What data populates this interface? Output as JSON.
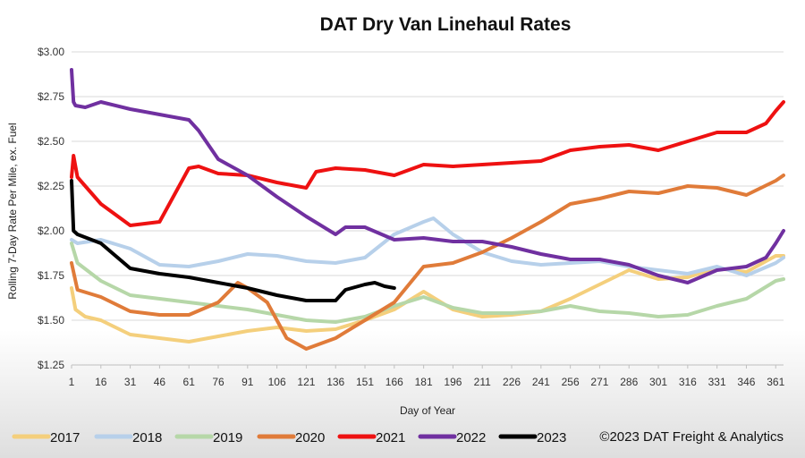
{
  "chart_data": {
    "type": "line",
    "title": "DAT Dry Van Linehaul Rates",
    "xlabel": "Day of Year",
    "ylabel": "Rolling 7-Day Rate Per Mile, ex. Fuel",
    "xlim": [
      1,
      365
    ],
    "ylim": [
      1.25,
      3.0
    ],
    "x_ticks": [
      1,
      16,
      31,
      46,
      61,
      76,
      91,
      106,
      121,
      136,
      151,
      166,
      181,
      196,
      211,
      226,
      241,
      256,
      271,
      286,
      301,
      316,
      331,
      346,
      361
    ],
    "y_ticks": [
      1.25,
      1.5,
      1.75,
      2.0,
      2.25,
      2.5,
      2.75,
      3.0
    ],
    "y_tick_labels": [
      "$1.25",
      "$1.50",
      "$1.75",
      "$2.00",
      "$2.25",
      "$2.50",
      "$2.75",
      "$3.00"
    ],
    "grid": true,
    "copyright": "©2023 DAT Freight & Analytics",
    "series": [
      {
        "name": "2017",
        "color": "#f4cf7c",
        "x": [
          1,
          3,
          8,
          16,
          31,
          46,
          61,
          76,
          91,
          106,
          121,
          136,
          151,
          166,
          181,
          196,
          211,
          226,
          241,
          256,
          271,
          286,
          301,
          316,
          331,
          346,
          361,
          365
        ],
        "y": [
          1.68,
          1.56,
          1.52,
          1.5,
          1.42,
          1.4,
          1.38,
          1.41,
          1.44,
          1.46,
          1.44,
          1.45,
          1.5,
          1.56,
          1.66,
          1.56,
          1.52,
          1.53,
          1.55,
          1.62,
          1.7,
          1.78,
          1.73,
          1.74,
          1.79,
          1.77,
          1.86,
          1.86
        ]
      },
      {
        "name": "2018",
        "color": "#b7d0ea",
        "x": [
          1,
          4,
          16,
          31,
          46,
          61,
          76,
          91,
          106,
          121,
          136,
          151,
          166,
          181,
          186,
          196,
          211,
          226,
          241,
          256,
          271,
          286,
          301,
          316,
          331,
          346,
          361,
          365
        ],
        "y": [
          1.95,
          1.93,
          1.95,
          1.9,
          1.81,
          1.8,
          1.83,
          1.87,
          1.86,
          1.83,
          1.82,
          1.85,
          1.98,
          2.05,
          2.07,
          1.98,
          1.88,
          1.83,
          1.81,
          1.82,
          1.83,
          1.8,
          1.78,
          1.76,
          1.8,
          1.75,
          1.82,
          1.85
        ]
      },
      {
        "name": "2019",
        "color": "#b6d7a8",
        "x": [
          1,
          4,
          16,
          31,
          46,
          61,
          76,
          91,
          106,
          121,
          136,
          151,
          166,
          181,
          196,
          211,
          226,
          241,
          256,
          271,
          286,
          301,
          316,
          331,
          346,
          361,
          365
        ],
        "y": [
          1.93,
          1.82,
          1.72,
          1.64,
          1.62,
          1.6,
          1.58,
          1.56,
          1.53,
          1.5,
          1.49,
          1.52,
          1.58,
          1.63,
          1.57,
          1.54,
          1.54,
          1.55,
          1.58,
          1.55,
          1.54,
          1.52,
          1.53,
          1.58,
          1.62,
          1.72,
          1.73
        ]
      },
      {
        "name": "2020",
        "color": "#e07b39",
        "x": [
          1,
          4,
          16,
          31,
          46,
          61,
          76,
          86,
          91,
          101,
          111,
          121,
          136,
          151,
          166,
          181,
          196,
          211,
          226,
          241,
          256,
          271,
          286,
          301,
          316,
          331,
          346,
          361,
          365
        ],
        "y": [
          1.82,
          1.67,
          1.63,
          1.55,
          1.53,
          1.53,
          1.6,
          1.71,
          1.68,
          1.6,
          1.4,
          1.34,
          1.4,
          1.5,
          1.6,
          1.8,
          1.82,
          1.88,
          1.96,
          2.05,
          2.15,
          2.18,
          2.22,
          2.21,
          2.25,
          2.24,
          2.2,
          2.28,
          2.31
        ]
      },
      {
        "name": "2021",
        "color": "#ee1111",
        "x": [
          1,
          2,
          4,
          8,
          16,
          31,
          46,
          61,
          66,
          76,
          91,
          106,
          121,
          126,
          136,
          151,
          166,
          181,
          196,
          211,
          226,
          241,
          256,
          271,
          286,
          301,
          316,
          331,
          346,
          356,
          361,
          365
        ],
        "y": [
          2.3,
          2.42,
          2.3,
          2.25,
          2.15,
          2.03,
          2.05,
          2.35,
          2.36,
          2.32,
          2.31,
          2.27,
          2.24,
          2.33,
          2.35,
          2.34,
          2.31,
          2.37,
          2.36,
          2.37,
          2.38,
          2.39,
          2.45,
          2.47,
          2.48,
          2.45,
          2.5,
          2.55,
          2.55,
          2.6,
          2.67,
          2.72
        ]
      },
      {
        "name": "2022",
        "color": "#7030a0",
        "x": [
          1,
          2,
          3,
          8,
          16,
          31,
          46,
          61,
          66,
          76,
          91,
          106,
          121,
          136,
          141,
          151,
          166,
          181,
          196,
          211,
          226,
          241,
          256,
          271,
          286,
          301,
          316,
          331,
          346,
          356,
          361,
          365
        ],
        "y": [
          2.9,
          2.72,
          2.7,
          2.69,
          2.72,
          2.68,
          2.65,
          2.62,
          2.56,
          2.4,
          2.31,
          2.19,
          2.08,
          1.98,
          2.02,
          2.02,
          1.95,
          1.96,
          1.94,
          1.94,
          1.91,
          1.87,
          1.84,
          1.84,
          1.81,
          1.75,
          1.71,
          1.78,
          1.8,
          1.85,
          1.93,
          2.0
        ]
      },
      {
        "name": "2023",
        "color": "#000000",
        "x": [
          1,
          2,
          4,
          16,
          31,
          46,
          61,
          76,
          91,
          106,
          121,
          136,
          141,
          151,
          156,
          161,
          166
        ],
        "y": [
          2.28,
          2.0,
          1.98,
          1.93,
          1.79,
          1.76,
          1.74,
          1.71,
          1.68,
          1.64,
          1.61,
          1.61,
          1.67,
          1.7,
          1.71,
          1.69,
          1.68
        ]
      }
    ]
  }
}
